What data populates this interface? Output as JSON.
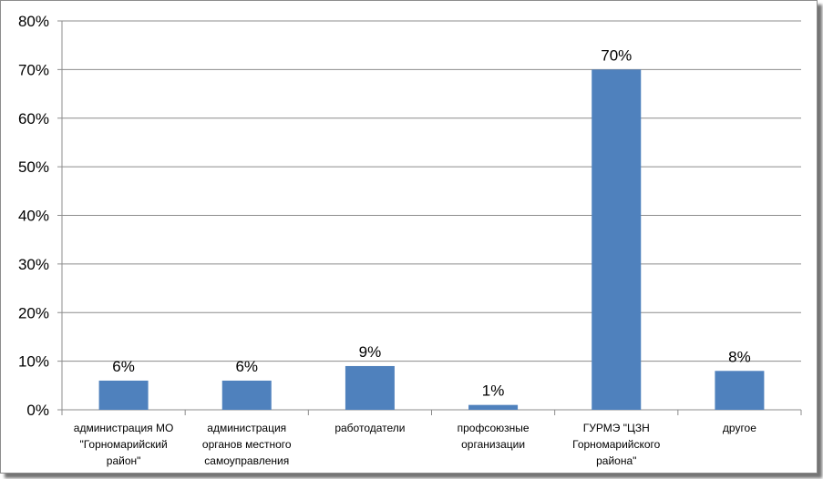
{
  "chart_data": {
    "type": "bar",
    "categories": [
      [
        "администрация МО",
        "\"Горномарийский",
        "район\""
      ],
      [
        "администрация",
        "органов местного",
        "самоуправления"
      ],
      [
        "работодатели"
      ],
      [
        "профсоюзные",
        "организации"
      ],
      [
        "ГУРМЭ \"ЦЗН",
        "Горномарийского",
        "района\""
      ],
      [
        "другое"
      ]
    ],
    "values": [
      6,
      6,
      9,
      1,
      70,
      8
    ],
    "data_labels": [
      "6%",
      "6%",
      "9%",
      "1%",
      "70%",
      "8%"
    ],
    "ylim": [
      0,
      80
    ],
    "yticks": [
      "0%",
      "10%",
      "20%",
      "30%",
      "40%",
      "50%",
      "60%",
      "70%",
      "80%"
    ],
    "grid": true,
    "title": "",
    "xlabel": "",
    "ylabel": "",
    "bar_color": "#4f81bd"
  }
}
